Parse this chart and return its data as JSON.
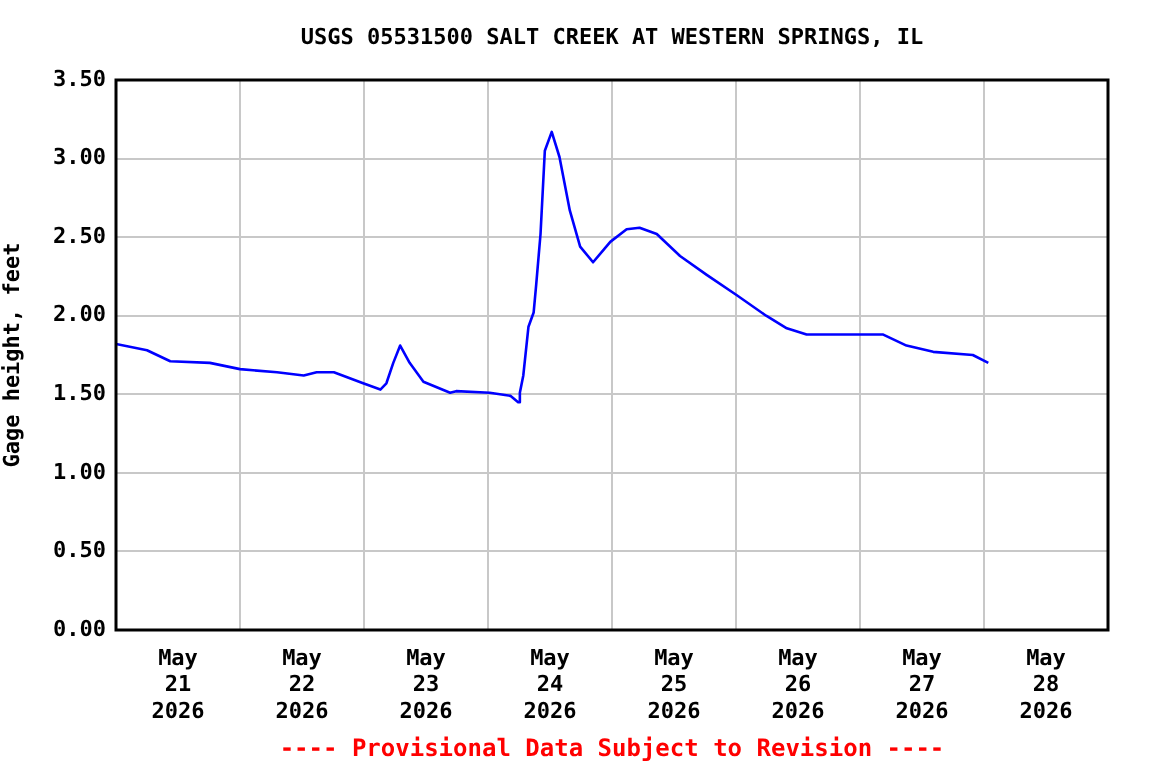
{
  "chart_data": {
    "type": "line",
    "title": "USGS 05531500 SALT CREEK AT WESTERN SPRINGS, IL",
    "ylabel": "Gage height, feet",
    "annotations": [
      "---- Provisional Data Subject to Revision ----"
    ],
    "x": [
      "2026-05-21T00:00",
      "2026-05-21T06:00",
      "2026-05-21T10:30",
      "2026-05-21T18:10",
      "2026-05-22T00:00",
      "2026-05-22T07:10",
      "2026-05-22T12:20",
      "2026-05-22T14:50",
      "2026-05-22T18:10",
      "2026-05-22T23:50",
      "2026-05-23T03:10",
      "2026-05-23T04:20",
      "2026-05-23T05:40",
      "2026-05-23T07:00",
      "2026-05-23T08:50",
      "2026-05-23T11:30",
      "2026-05-23T16:40",
      "2026-05-23T17:50",
      "2026-05-24T00:20",
      "2026-05-24T04:20",
      "2026-05-24T05:50",
      "2026-05-24T06:10",
      "2026-05-24T06:50",
      "2026-05-24T07:50",
      "2026-05-24T08:50",
      "2026-05-24T09:20",
      "2026-05-24T10:10",
      "2026-05-24T11:00",
      "2026-05-24T12:20",
      "2026-05-24T13:50",
      "2026-05-24T15:50",
      "2026-05-24T17:50",
      "2026-05-24T20:20",
      "2026-05-24T23:40",
      "2026-05-25T02:50",
      "2026-05-25T05:20",
      "2026-05-25T08:40",
      "2026-05-25T13:10",
      "2026-05-25T18:20",
      "2026-05-26T00:10",
      "2026-05-26T05:50",
      "2026-05-26T09:50",
      "2026-05-26T13:40",
      "2026-05-27T04:30",
      "2026-05-27T09:00",
      "2026-05-27T14:10",
      "2026-05-27T21:50",
      "2026-05-28T00:50"
    ],
    "series": [
      {
        "color": "#0000ff",
        "values": [
          1.82,
          1.78,
          1.71,
          1.7,
          1.66,
          1.64,
          1.62,
          1.64,
          1.64,
          1.57,
          1.53,
          1.57,
          1.7,
          1.81,
          1.7,
          1.58,
          1.51,
          1.52,
          1.51,
          1.49,
          1.45,
          1.51,
          1.62,
          1.93,
          2.02,
          2.2,
          2.52,
          3.05,
          3.17,
          3.01,
          2.67,
          2.44,
          2.34,
          2.47,
          2.55,
          2.56,
          2.52,
          2.38,
          2.26,
          2.13,
          2.0,
          1.92,
          1.88,
          1.88,
          1.81,
          1.77,
          1.75,
          1.7
        ]
      }
    ],
    "xlim": [
      "2026-05-21T00:00",
      "2026-05-29T00:00"
    ],
    "xticks": [
      {
        "value": "2026-05-21T12:00",
        "label": "May\n21\n2026"
      },
      {
        "value": "2026-05-22T00:00",
        "label": null
      },
      {
        "value": "2026-05-22T12:00",
        "label": "May\n22\n2026"
      },
      {
        "value": "2026-05-23T00:00",
        "label": null
      },
      {
        "value": "2026-05-23T12:00",
        "label": "May\n23\n2026"
      },
      {
        "value": "2026-05-24T00:00",
        "label": null
      },
      {
        "value": "2026-05-24T12:00",
        "label": "May\n24\n2026"
      },
      {
        "value": "2026-05-25T00:00",
        "label": null
      },
      {
        "value": "2026-05-25T12:00",
        "label": "May\n25\n2026"
      },
      {
        "value": "2026-05-26T00:00",
        "label": null
      },
      {
        "value": "2026-05-26T12:00",
        "label": "May\n26\n2026"
      },
      {
        "value": "2026-05-27T00:00",
        "label": null
      },
      {
        "value": "2026-05-27T12:00",
        "label": "May\n27\n2026"
      },
      {
        "value": "2026-05-28T00:00",
        "label": null
      },
      {
        "value": "2026-05-28T12:00",
        "label": "May\n28\n2026"
      }
    ],
    "ylim": [
      0,
      3.5
    ],
    "yticks": [
      {
        "value": 0,
        "label": "0.00"
      },
      {
        "value": 0.5,
        "label": "0.50"
      },
      {
        "value": 1,
        "label": "1.00"
      },
      {
        "value": 1.5,
        "label": "1.50"
      },
      {
        "value": 2,
        "label": "2.00"
      },
      {
        "value": 2.5,
        "label": "2.50"
      },
      {
        "value": 3,
        "label": "3.00"
      },
      {
        "value": 3.5,
        "label": "3.50"
      }
    ],
    "grid": true,
    "legend": false,
    "marker": "none",
    "line_style": "solid"
  }
}
